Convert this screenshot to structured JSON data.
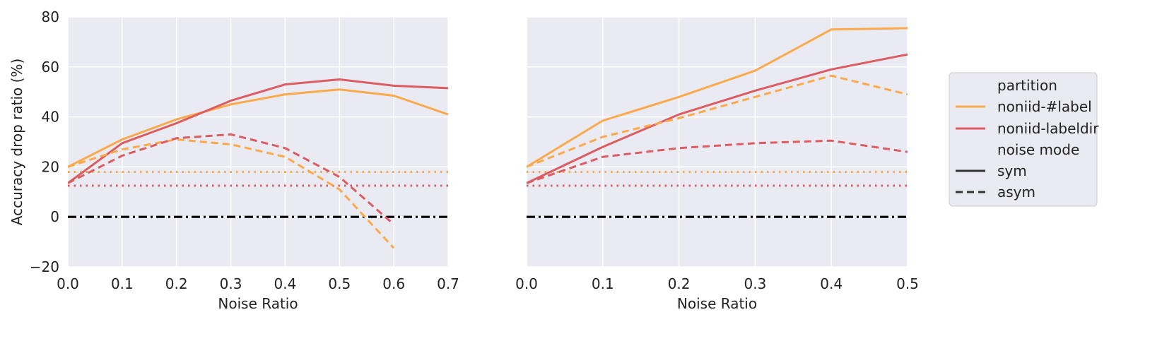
{
  "chart_data": [
    {
      "type": "line",
      "panel": "left",
      "xlabel": "Noise Ratio",
      "ylabel": "Accuracy drop ratio (%)",
      "xlim": [
        0.0,
        0.7
      ],
      "ylim": [
        -20,
        80
      ],
      "xticks": [
        "0.0",
        "0.1",
        "0.2",
        "0.3",
        "0.4",
        "0.5",
        "0.6",
        "0.7"
      ],
      "yticks": [
        "−20",
        "0",
        "20",
        "40",
        "60",
        "80"
      ],
      "grid": true,
      "series": [
        {
          "name": "noniid-#label sym",
          "partition": "noniid-#label",
          "mode": "sym",
          "x": [
            0.0,
            0.1,
            0.2,
            0.3,
            0.4,
            0.5,
            0.6,
            0.7
          ],
          "y": [
            20,
            31,
            39,
            45,
            49,
            51,
            48.5,
            41
          ]
        },
        {
          "name": "noniid-labeldir sym",
          "partition": "noniid-labeldir",
          "mode": "sym",
          "x": [
            0.0,
            0.1,
            0.2,
            0.3,
            0.4,
            0.5,
            0.6,
            0.7
          ],
          "y": [
            13.5,
            29.5,
            37.5,
            46.5,
            53,
            55,
            52.5,
            51.5
          ]
        },
        {
          "name": "noniid-#label asym",
          "partition": "noniid-#label",
          "mode": "asym",
          "x": [
            0.0,
            0.1,
            0.2,
            0.3,
            0.4,
            0.5,
            0.6
          ],
          "y": [
            20,
            27,
            31,
            29,
            24,
            11,
            -12.5
          ]
        },
        {
          "name": "noniid-labeldir asym",
          "partition": "noniid-labeldir",
          "mode": "asym",
          "x": [
            0.0,
            0.1,
            0.2,
            0.3,
            0.4,
            0.5,
            0.6
          ],
          "y": [
            13.5,
            24.5,
            31.5,
            33,
            27.5,
            16,
            -3
          ]
        }
      ],
      "reference_lines": [
        {
          "name": "noniid-#label baseline",
          "partition": "noniid-#label",
          "y": 18,
          "style": "dotted"
        },
        {
          "name": "noniid-labeldir baseline",
          "partition": "noniid-labeldir",
          "y": 12.5,
          "style": "dotted"
        },
        {
          "name": "zero line",
          "partition": "zero",
          "y": 0,
          "style": "dashdot"
        }
      ]
    },
    {
      "type": "line",
      "panel": "right",
      "xlabel": "Noise Ratio",
      "ylabel": "",
      "xlim": [
        0.0,
        0.5
      ],
      "ylim": [
        -20,
        80
      ],
      "xticks": [
        "0.0",
        "0.1",
        "0.2",
        "0.3",
        "0.4",
        "0.5"
      ],
      "yticks": [],
      "grid": true,
      "series": [
        {
          "name": "noniid-#label sym",
          "partition": "noniid-#label",
          "mode": "sym",
          "x": [
            0.0,
            0.1,
            0.2,
            0.3,
            0.4,
            0.5
          ],
          "y": [
            20,
            38.5,
            48,
            58.5,
            75,
            75.5
          ]
        },
        {
          "name": "noniid-labeldir sym",
          "partition": "noniid-labeldir",
          "mode": "sym",
          "x": [
            0.0,
            0.1,
            0.2,
            0.3,
            0.4,
            0.5
          ],
          "y": [
            13.5,
            28,
            41,
            50.5,
            59,
            65
          ]
        },
        {
          "name": "noniid-#label asym",
          "partition": "noniid-#label",
          "mode": "asym",
          "x": [
            0.0,
            0.1,
            0.2,
            0.3,
            0.4,
            0.5
          ],
          "y": [
            20,
            32,
            39.5,
            48,
            56.5,
            49
          ]
        },
        {
          "name": "noniid-labeldir asym",
          "partition": "noniid-labeldir",
          "mode": "asym",
          "x": [
            0.0,
            0.1,
            0.2,
            0.3,
            0.4,
            0.5
          ],
          "y": [
            13.5,
            24,
            27.5,
            29.5,
            30.5,
            26
          ]
        }
      ],
      "reference_lines": [
        {
          "name": "noniid-#label baseline",
          "partition": "noniid-#label",
          "y": 18,
          "style": "dotted"
        },
        {
          "name": "noniid-labeldir baseline",
          "partition": "noniid-labeldir",
          "y": 12.5,
          "style": "dotted"
        },
        {
          "name": "zero line",
          "partition": "zero",
          "y": 0,
          "style": "dashdot"
        }
      ]
    }
  ],
  "legend": {
    "placement": "right",
    "partition_title": "partition",
    "partition_items": [
      {
        "label": "noniid-#label",
        "key": "noniid-#label"
      },
      {
        "label": "noniid-labeldir",
        "key": "noniid-labeldir"
      }
    ],
    "mode_title": "noise mode",
    "mode_items": [
      {
        "label": "sym",
        "mode": "sym"
      },
      {
        "label": "asym",
        "mode": "asym"
      }
    ]
  },
  "colors": {
    "noniid-#label": "#fba94b",
    "noniid-labeldir": "#dc5c61",
    "zero": "#000000",
    "plot_background": "#eaeaf2",
    "grid": "#ffffff"
  }
}
